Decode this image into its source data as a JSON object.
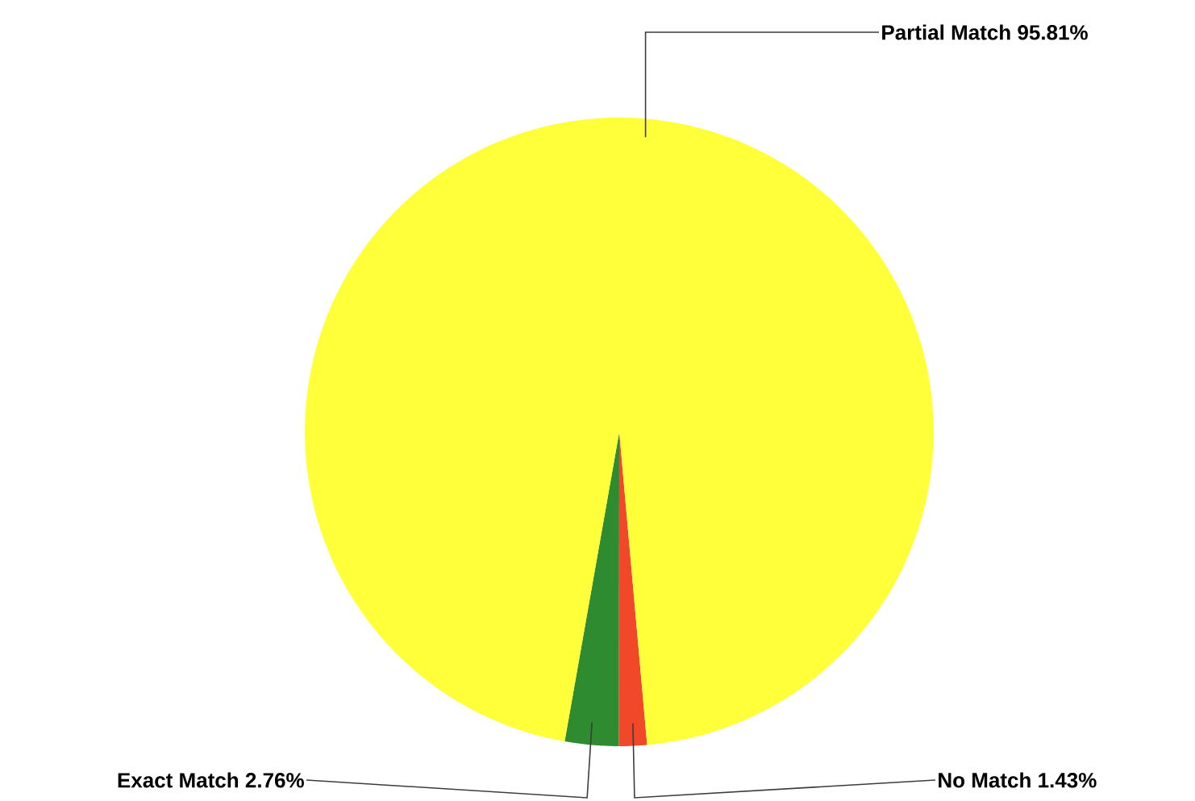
{
  "chart_data": {
    "type": "pie",
    "categories": [
      "Exact Match",
      "No Match",
      "Partial Match"
    ],
    "values": [
      2.76,
      1.43,
      95.81
    ],
    "value_labels": [
      "2.76%",
      "1.43%",
      "95.81%"
    ],
    "colors": [
      "#2e8b30",
      "#f2482a",
      "#ffff3a"
    ]
  }
}
